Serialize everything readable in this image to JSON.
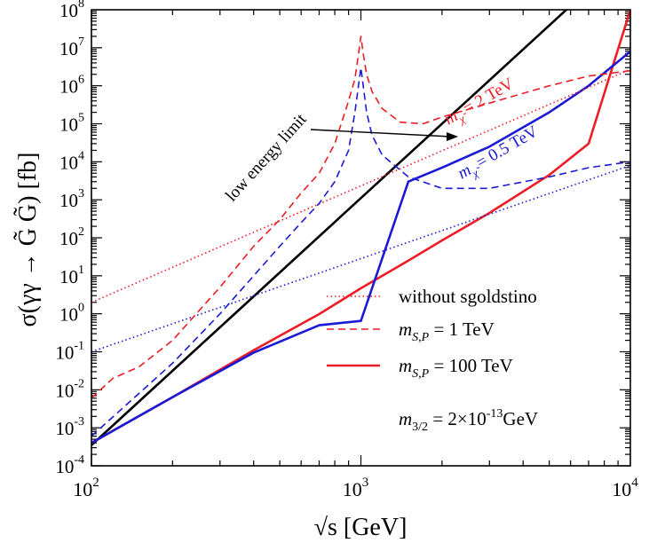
{
  "chart_data": {
    "type": "line",
    "x_scale": "log",
    "y_scale": "log",
    "xlim": [
      100,
      10000
    ],
    "ylim": [
      0.0001,
      100000000
    ],
    "xlabel": "√s [GeV]",
    "ylabel": "σ(γγ → G̃ G̃) [fb]",
    "x_ticks": [
      {
        "base": "10",
        "exp": "2"
      },
      {
        "base": "10",
        "exp": "3"
      },
      {
        "base": "10",
        "exp": "4"
      }
    ],
    "y_ticks": [
      {
        "base": "10",
        "exp": "-4"
      },
      {
        "base": "10",
        "exp": "-3"
      },
      {
        "base": "10",
        "exp": "-2"
      },
      {
        "base": "10",
        "exp": "-1"
      },
      {
        "base": "10",
        "exp": "0"
      },
      {
        "base": "10",
        "exp": "1"
      },
      {
        "base": "10",
        "exp": "2"
      },
      {
        "base": "10",
        "exp": "3"
      },
      {
        "base": "10",
        "exp": "4"
      },
      {
        "base": "10",
        "exp": "5"
      },
      {
        "base": "10",
        "exp": "6"
      },
      {
        "base": "10",
        "exp": "7"
      },
      {
        "base": "10",
        "exp": "8"
      }
    ],
    "legend": {
      "placement": "bottom-right",
      "entries": [
        {
          "label": "without sgoldstino",
          "style": "dotted",
          "color": "#ee1c24"
        },
        {
          "label_m": "m",
          "label_sub": "S,P",
          "label_rest": " = 1 TeV",
          "style": "dashed",
          "color": "#ee1c24"
        },
        {
          "label_m": "m",
          "label_sub": "S,P",
          "label_rest": " = 100 TeV",
          "style": "solid",
          "color": "#ee1c24"
        }
      ],
      "note": {
        "m": "m",
        "sub": "3/2",
        "mid": " = 2×10",
        "sup": "-13",
        "tail": "GeV"
      }
    },
    "annotations": {
      "low_energy": {
        "text": "low energy limit"
      },
      "m2tev": {
        "text": " = 2 TeV",
        "color": "#ee1c24"
      },
      "m05tev": {
        "text": " = 0.5 TeV",
        "color": "#1a1ad6"
      }
    },
    "colors": {
      "red": "#ee1c24",
      "blue": "#1a1ad6",
      "black": "#000000"
    },
    "series": [
      {
        "color": "#000000",
        "style": "solid",
        "x": [
          100,
          10000
        ],
        "y": [
          0.00035,
          3500000000
        ]
      },
      {
        "color": "#ee1c24",
        "style": "solid",
        "x": [
          100,
          200,
          400,
          700,
          1000,
          1500,
          2000,
          3000,
          5000,
          7000,
          10000
        ],
        "y": [
          0.0004,
          0.0064,
          0.11,
          0.98,
          4.7,
          25,
          85,
          450,
          4500,
          30000,
          100000000
        ]
      },
      {
        "color": "#1a1ad6",
        "style": "solid",
        "x": [
          100,
          200,
          400,
          700,
          1000,
          1500,
          2000,
          3000,
          5000,
          7000,
          10000
        ],
        "y": [
          0.0004,
          0.0064,
          0.095,
          0.5,
          0.65,
          3000,
          7000,
          25000,
          200000,
          1000000,
          8000000
        ]
      },
      {
        "color": "#ee1c24",
        "style": "dotted",
        "x": [
          100,
          10000
        ],
        "y": [
          2,
          2700000
        ]
      },
      {
        "color": "#1a1ad6",
        "style": "dotted",
        "x": [
          100,
          10000
        ],
        "y": [
          0.1,
          8000
        ]
      },
      {
        "color": "#ee1c24",
        "style": "dashed",
        "x": [
          100,
          120,
          150,
          200,
          300,
          400,
          500,
          600,
          700,
          800,
          900,
          950,
          980,
          1000,
          1020,
          1050,
          1100,
          1200,
          1400,
          1700,
          2000,
          3000,
          5000,
          7000,
          10000
        ],
        "y": [
          0.006,
          0.02,
          0.04,
          0.2,
          5,
          60,
          300,
          1500,
          5000,
          30000,
          400000,
          1500000,
          7000000,
          20000000,
          7000000,
          2000000,
          700000,
          250000,
          110000,
          100000,
          150000,
          350000,
          1000000,
          1800000,
          2500000
        ]
      },
      {
        "color": "#1a1ad6",
        "style": "dashed",
        "x": [
          100,
          150,
          200,
          300,
          400,
          500,
          600,
          700,
          800,
          900,
          950,
          1000,
          1050,
          1100,
          1200,
          1500,
          2000,
          3000,
          5000,
          7000,
          10000
        ],
        "y": [
          0.0006,
          0.008,
          0.05,
          1,
          10,
          60,
          250,
          800,
          3000,
          20000,
          200000,
          3000000,
          200000,
          50000,
          15000,
          4000,
          2000,
          2000,
          4000,
          7000,
          10000
        ]
      }
    ]
  }
}
